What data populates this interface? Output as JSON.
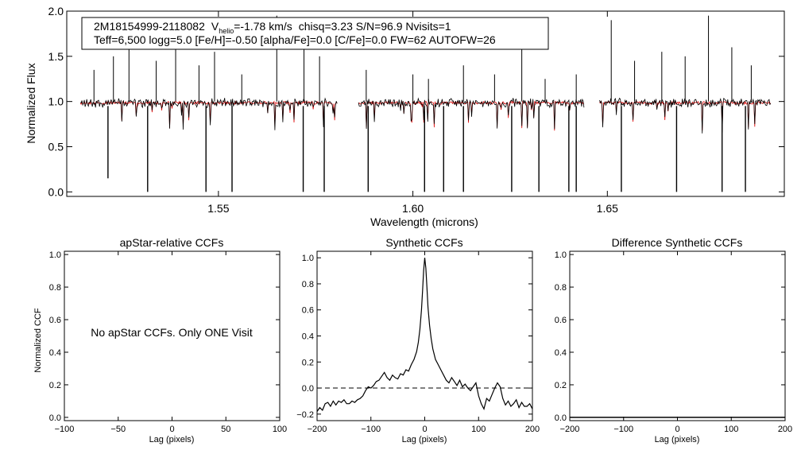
{
  "chart_data": [
    {
      "type": "line",
      "xlabel": "Wavelength (microns)",
      "ylabel": "Normalized Flux",
      "xlim": [
        1.511,
        1.6955
      ],
      "ylim": [
        -0.05,
        2.0
      ],
      "x_ticks": [
        1.55,
        1.6,
        1.65
      ],
      "x_tick_labels": [
        "1.55",
        "1.60",
        "1.65"
      ],
      "y_ticks": [
        0.0,
        0.5,
        1.0,
        1.5,
        2.0
      ],
      "y_tick_labels": [
        "0.0",
        "0.5",
        "1.0",
        "1.5",
        "2.0"
      ],
      "info": {
        "star_id": "2M18154999-2118082",
        "v_symbol": "V",
        "v_subscript": "helio",
        "v_value": "=-1.78 km/s",
        "stats": "chisq=3.23  S/N=96.9  Nvisits=1",
        "params": "Teff=6,500 logg=5.0 [Fe/H]=-0.50 [alpha/Fe]=0.0 [C/Fe]=0.0 FW=62 AUTOFW=26"
      },
      "series": [
        {
          "name": "Observed spectrum",
          "color": "#000000",
          "chip_ranges": [
            [
              1.5145,
              1.5805
            ],
            [
              1.586,
              1.644
            ],
            [
              1.648,
              1.692
            ]
          ]
        },
        {
          "name": "Best-fit model",
          "color": "#dd0000",
          "chip_ranges": [
            [
              1.5145,
              1.5805
            ],
            [
              1.586,
              1.644
            ],
            [
              1.648,
              1.692
            ]
          ]
        }
      ],
      "sky_spikes_up": [
        1.518,
        1.523,
        1.527,
        1.534,
        1.539,
        1.545,
        1.549,
        1.556,
        1.565,
        1.572,
        1.576,
        1.588,
        1.6,
        1.604,
        1.613,
        1.621,
        1.628,
        1.634,
        1.642,
        1.651,
        1.657,
        1.664,
        1.67,
        1.676,
        1.682,
        1.687
      ],
      "sky_spikes_up_heights": [
        1.35,
        1.5,
        1.85,
        1.45,
        1.6,
        1.4,
        1.55,
        1.3,
        1.95,
        1.7,
        1.5,
        1.35,
        1.3,
        1.25,
        1.4,
        1.3,
        1.7,
        1.25,
        1.3,
        1.9,
        1.45,
        1.55,
        1.5,
        1.95,
        1.6,
        1.4
      ],
      "bad_pixels_down": [
        1.5216,
        1.5318,
        1.5468,
        1.5535,
        1.5718,
        1.5772,
        1.5885,
        1.603,
        1.6079,
        1.613,
        1.6254,
        1.6324,
        1.6401,
        1.642,
        1.6536,
        1.6678,
        1.6795,
        1.6855
      ],
      "bad_pixels_down_depths": [
        0.15,
        0.0,
        0.0,
        0.0,
        0.0,
        0.0,
        0.0,
        0.0,
        0.0,
        0.0,
        0.0,
        0.0,
        0.0,
        0.0,
        0.0,
        0.0,
        0.0,
        0.0
      ]
    },
    {
      "type": "line",
      "title": "apStar-relative CCFs",
      "xlabel": "Lag (pixels)",
      "ylabel": "Normalized CCF",
      "xlim": [
        -100,
        100
      ],
      "ylim": [
        -0.02,
        1.02
      ],
      "x_ticks": [
        -100,
        -50,
        0,
        50,
        100
      ],
      "x_tick_labels": [
        "−100",
        "−50",
        "0",
        "50",
        "100"
      ],
      "y_ticks": [
        0.0,
        0.2,
        0.4,
        0.6,
        0.8,
        1.0
      ],
      "y_tick_labels": [
        "0.0",
        "0.2",
        "0.4",
        "0.6",
        "0.8",
        "1.0"
      ],
      "annotation": "No apStar CCFs.  Only ONE Visit",
      "series": []
    },
    {
      "type": "line",
      "title": "Synthetic CCFs",
      "xlabel": "Lag (pixels)",
      "ylabel": "",
      "xlim": [
        -200,
        200
      ],
      "ylim": [
        -0.25,
        1.05
      ],
      "x_ticks": [
        -200,
        -100,
        0,
        100,
        200
      ],
      "x_tick_labels": [
        "−200",
        "−100",
        "0",
        "100",
        "200"
      ],
      "y_ticks": [
        -0.2,
        0.0,
        0.2,
        0.4,
        0.6,
        0.8,
        1.0
      ],
      "y_tick_labels": [
        "−0.2",
        "0.0",
        "0.2",
        "0.4",
        "0.6",
        "0.8",
        "1.0"
      ],
      "reference_line": 0.0,
      "series": [
        {
          "name": "Synthetic CCF",
          "x": [
            -200,
            -195,
            -190,
            -185,
            -180,
            -175,
            -170,
            -165,
            -160,
            -155,
            -150,
            -145,
            -140,
            -135,
            -130,
            -125,
            -120,
            -115,
            -110,
            -105,
            -100,
            -95,
            -90,
            -85,
            -80,
            -75,
            -70,
            -65,
            -60,
            -55,
            -50,
            -45,
            -40,
            -35,
            -30,
            -25,
            -20,
            -15,
            -12,
            -9,
            -6,
            -4,
            -2,
            0,
            2,
            4,
            6,
            9,
            12,
            15,
            20,
            25,
            30,
            35,
            40,
            45,
            50,
            55,
            60,
            65,
            70,
            75,
            80,
            85,
            90,
            95,
            100,
            105,
            110,
            115,
            120,
            125,
            130,
            135,
            140,
            145,
            150,
            155,
            160,
            165,
            170,
            175,
            180,
            185,
            190,
            195,
            200
          ],
          "y": [
            -0.18,
            -0.15,
            -0.17,
            -0.12,
            -0.11,
            -0.14,
            -0.1,
            -0.13,
            -0.1,
            -0.11,
            -0.09,
            -0.12,
            -0.12,
            -0.1,
            -0.11,
            -0.09,
            -0.08,
            -0.06,
            -0.02,
            0.01,
            0.0,
            0.02,
            0.05,
            0.06,
            0.09,
            0.12,
            0.08,
            0.06,
            0.1,
            0.08,
            0.07,
            0.11,
            0.1,
            0.14,
            0.13,
            0.18,
            0.22,
            0.28,
            0.35,
            0.45,
            0.6,
            0.75,
            0.9,
            1.0,
            0.92,
            0.78,
            0.62,
            0.48,
            0.38,
            0.3,
            0.22,
            0.18,
            0.14,
            0.1,
            0.06,
            0.04,
            0.08,
            0.05,
            0.02,
            0.06,
            0.01,
            0.03,
            0.0,
            -0.02,
            0.01,
            0.04,
            -0.06,
            -0.12,
            -0.16,
            -0.08,
            -0.1,
            -0.05,
            0.0,
            0.04,
            0.01,
            -0.08,
            -0.13,
            -0.1,
            -0.14,
            -0.12,
            -0.09,
            -0.15,
            -0.11,
            -0.14,
            -0.14,
            -0.12,
            -0.16
          ]
        }
      ]
    },
    {
      "type": "line",
      "title": "Difference Synthetic CCFs",
      "xlabel": "Lag (pixels)",
      "ylabel": "",
      "xlim": [
        -200,
        200
      ],
      "ylim": [
        -0.02,
        1.02
      ],
      "x_ticks": [
        -200,
        -100,
        0,
        100,
        200
      ],
      "x_tick_labels": [
        "−200",
        "−100",
        "0",
        "100",
        "200"
      ],
      "y_ticks": [
        0.0,
        0.2,
        0.4,
        0.6,
        0.8,
        1.0
      ],
      "y_tick_labels": [
        "0.0",
        "0.2",
        "0.4",
        "0.6",
        "0.8",
        "1.0"
      ],
      "series": [
        {
          "name": "Difference CCF",
          "x": [
            -200,
            200
          ],
          "y": [
            0.0,
            0.0
          ]
        }
      ]
    }
  ]
}
